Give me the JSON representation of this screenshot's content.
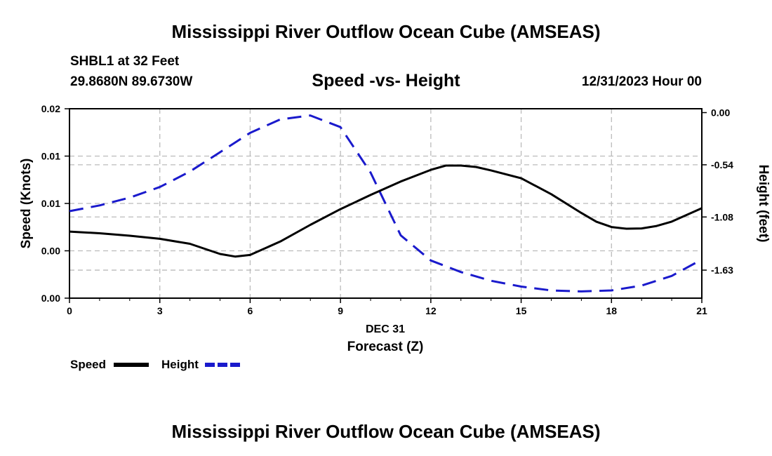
{
  "header": {
    "title": "Mississippi River Outflow Ocean Cube (AMSEAS)",
    "station": "SHBL1 at 32 Feet",
    "coords": "29.8680N  89.6730W",
    "date": "12/31/2023 Hour 00",
    "bottom_title": "Mississippi River Outflow Ocean Cube (AMSEAS)"
  },
  "chart_data": {
    "type": "line",
    "title": "Speed -vs- Height",
    "xlabel": "Forecast (Z)",
    "xsub": "DEC 31",
    "ylabel": "Speed (Knots)",
    "y2label": "Height (feet)",
    "xlim": [
      0,
      21
    ],
    "ylim": [
      0,
      0.02
    ],
    "y2lim": [
      -1.92,
      0.04
    ],
    "x_ticks": [
      "0",
      "3",
      "6",
      "9",
      "12",
      "15",
      "18",
      "21"
    ],
    "y_ticks": [
      "0.00",
      "0.00",
      "0.01",
      "0.01",
      "0.02"
    ],
    "y2_ticks": [
      "0.00",
      "-0.54",
      "-1.08",
      "-1.63"
    ],
    "grid": true,
    "legend": [
      "Speed",
      "Height"
    ],
    "series": [
      {
        "name": "Speed",
        "color": "#000000",
        "axis": "left",
        "x": [
          0,
          1,
          2,
          3,
          4,
          5,
          5.5,
          6,
          7,
          8,
          9,
          10,
          11,
          12,
          12.5,
          13,
          13.5,
          14,
          15,
          16,
          17,
          17.5,
          18,
          18.5,
          19,
          19.5,
          20,
          21
        ],
        "values": [
          0.00703,
          0.00685,
          0.00659,
          0.00627,
          0.00574,
          0.00467,
          0.00439,
          0.00456,
          0.00598,
          0.00774,
          0.0094,
          0.0109,
          0.01232,
          0.01355,
          0.014,
          0.014,
          0.01385,
          0.01349,
          0.01266,
          0.01098,
          0.00899,
          0.00807,
          0.00751,
          0.00733,
          0.00736,
          0.00762,
          0.00808,
          0.0095
        ]
      },
      {
        "name": "Height",
        "color": "#1a1acc",
        "axis": "right",
        "x": [
          0,
          1,
          2,
          3,
          4,
          5,
          6,
          7,
          8,
          9,
          10,
          11,
          12,
          13,
          14,
          15,
          16,
          17,
          18,
          19,
          20,
          21
        ],
        "values": [
          -1.02,
          -0.96,
          -0.88,
          -0.77,
          -0.61,
          -0.41,
          -0.21,
          -0.07,
          -0.03,
          -0.15,
          -0.62,
          -1.27,
          -1.53,
          -1.65,
          -1.74,
          -1.8,
          -1.84,
          -1.85,
          -1.84,
          -1.79,
          -1.69,
          -1.52
        ]
      }
    ]
  }
}
